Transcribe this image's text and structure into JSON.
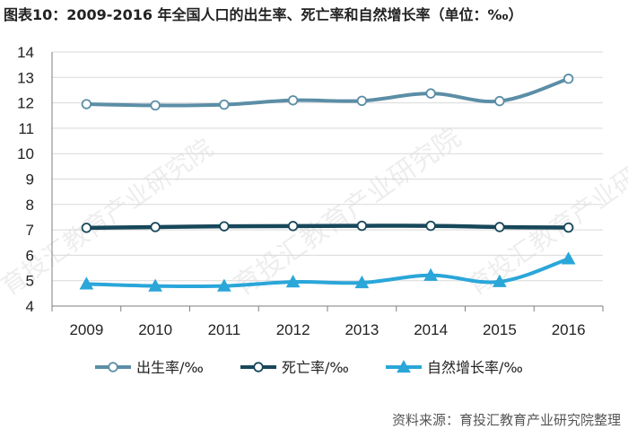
{
  "title": "图表10：2009-2016 年全国人口的出生率、死亡率和自然增长率（单位：‰）",
  "source": "资料来源：育投汇教育产业研究院整理",
  "watermark": "育投汇教育产业研究院",
  "colors": {
    "birth": "#5b8ea6",
    "death": "#17475a",
    "natural": "#2aa6d9",
    "grid": "#d9d9d9",
    "axis": "#7f7f7f"
  },
  "chart_data": {
    "type": "line",
    "categories": [
      "2009",
      "2010",
      "2011",
      "2012",
      "2013",
      "2014",
      "2015",
      "2016"
    ],
    "ylim": [
      4,
      14
    ],
    "yticks": [
      "4",
      "5",
      "6",
      "7",
      "8",
      "9",
      "10",
      "11",
      "12",
      "13",
      "14"
    ],
    "grid": true,
    "legend_position": "bottom",
    "series": [
      {
        "name": "出生率/‰",
        "marker": "circle",
        "values": [
          11.95,
          11.9,
          11.93,
          12.1,
          12.08,
          12.37,
          12.07,
          12.95
        ]
      },
      {
        "name": "死亡率/‰",
        "marker": "circle",
        "values": [
          7.08,
          7.11,
          7.14,
          7.15,
          7.16,
          7.16,
          7.11,
          7.09
        ]
      },
      {
        "name": "自然增长率/‰",
        "marker": "triangle",
        "values": [
          4.87,
          4.79,
          4.79,
          4.95,
          4.92,
          5.21,
          4.96,
          5.86
        ]
      }
    ]
  }
}
